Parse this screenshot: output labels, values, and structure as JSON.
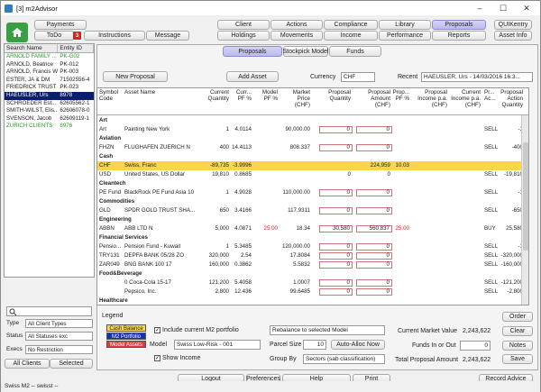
{
  "window": {
    "title": "[3] m2Advisor",
    "minimize": "–",
    "maximize": "☐",
    "close": "✕"
  },
  "nav_row1": {
    "payments": "Payments",
    "client": "Client",
    "actions": "Actions",
    "compliance": "Compliance",
    "library": "Library",
    "proposals": "Proposals",
    "quikentry": "QUIKentry"
  },
  "nav_row2": {
    "todo": "ToDo",
    "todo_count": "3",
    "instructions": "Instructions",
    "message": "Message",
    "holdings": "Holdings",
    "movements": "Movements",
    "income": "Income",
    "performance": "Performance",
    "reports": "Reports",
    "asset_info": "Asset Info"
  },
  "subtabs": {
    "proposals": "Proposals",
    "stockpick": "Stockpick Model",
    "funds": "Funds"
  },
  "client_list": {
    "headers": [
      "Search Name",
      "Entity ID"
    ],
    "rows": [
      {
        "name": "ARNOLD FAMILY ...",
        "id": "PK-G02",
        "color": "#2a9a2a"
      },
      {
        "name": "ARNOLD, Beatrice",
        "id": "PK-012",
        "color": "#222"
      },
      {
        "name": "ARNOLD, Francis W",
        "id": "PK-003",
        "color": "#222"
      },
      {
        "name": "ESTER, JA & DM",
        "id": "71502556-4",
        "color": "#222"
      },
      {
        "name": "FRIEDRICK TRUST",
        "id": "PK-023",
        "color": "#222"
      },
      {
        "name": "HAEUSLER, Urs",
        "id": "8978",
        "color": "#fff",
        "selected": true
      },
      {
        "name": "SCHROEDER Est...",
        "id": "62605562-1",
        "color": "#222"
      },
      {
        "name": "SMITH-WILST, Elis...",
        "id": "62606078-0",
        "color": "#222"
      },
      {
        "name": "SVENSON, Jacob",
        "id": "62609119-1",
        "color": "#222"
      },
      {
        "name": "ZURICH CLIENTS",
        "id": "8976",
        "color": "#2a9a2a"
      }
    ]
  },
  "filters": {
    "type_label": "Type",
    "type_value": "All Client Types",
    "status_label": "Status",
    "status_value": "All Statuses exc",
    "execs_label": "Execs",
    "execs_value": "No Restriction",
    "all_clients": "All Clients",
    "selected": "Selected"
  },
  "toolbar": {
    "new_proposal": "New Proposal",
    "add_asset": "Add Asset",
    "currency_label": "Currency",
    "currency_value": "CHF",
    "recent_label": "Recent",
    "recent_value": "HAEUSLER, Urs - 14/03/2016 16:3..."
  },
  "grid_headers": [
    {
      "k": "sym",
      "t": "Symbol\nCode"
    },
    {
      "k": "name",
      "t": "Asset Name"
    },
    {
      "k": "qty",
      "t": "Current\nQuantity"
    },
    {
      "k": "cpf",
      "t": "Curr...\nPF %"
    },
    {
      "k": "mpf",
      "t": "Model\nPF %"
    },
    {
      "k": "mp",
      "t": "Market\nPrice\n(CHF)"
    },
    {
      "k": "pq",
      "t": "Proposal\nQuantity"
    },
    {
      "k": "pa",
      "t": "Proposal\nAmount\n(CHF)"
    },
    {
      "k": "ppf",
      "t": "Prop...\nPF %"
    },
    {
      "k": "pi",
      "t": "Proposal\nIncome p.a.\n(CHF)"
    },
    {
      "k": "ci",
      "t": "Current\nIncome p.a.\n(CHF)"
    },
    {
      "k": "pr",
      "t": "Pr...\nAc..."
    },
    {
      "k": "pact",
      "t": "Proposal\nAction\nQuantity"
    }
  ],
  "grid_rows": [
    {
      "type": "sec",
      "sym": "Art"
    },
    {
      "sym": "Art",
      "name": "Painting New York",
      "qty": "1",
      "cpf": "4.0114",
      "mpf": "",
      "mp": "90,000.00",
      "pq": "0",
      "pa": "0",
      "ppf": "",
      "pi": "",
      "ci": "",
      "pr": "SELL",
      "pact": "-1",
      "box": true
    },
    {
      "type": "sec",
      "sym": "Aviation"
    },
    {
      "sym": "FHZN",
      "name": "FLUGHAFEN ZUERICH N",
      "qty": "400",
      "cpf": "14.4113",
      "mpf": "",
      "mp": "808.337",
      "pq": "0",
      "pa": "0",
      "ppf": "",
      "pi": "",
      "ci": "",
      "pr": "SELL",
      "pact": "-400",
      "box": true
    },
    {
      "type": "sec",
      "sym": "Cash"
    },
    {
      "sym": "CHF",
      "name": "Swiss, Franc",
      "qty": "-89,735",
      "cpf": "-3.9996",
      "mpf": "",
      "mp": "",
      "pq": "",
      "pa": "224,959",
      "ppf": "10.03",
      "pi": "",
      "ci": "",
      "pr": "",
      "pact": "",
      "hl": true
    },
    {
      "sym": "USD",
      "name": "United States, US Dollar",
      "qty": "19,810",
      "cpf": "0.8685",
      "mpf": "",
      "mp": "",
      "pq": "0",
      "pa": "0",
      "ppf": "",
      "pi": "",
      "ci": "",
      "pr": "SELL",
      "pact": "-19,810"
    },
    {
      "type": "sec",
      "sym": "Cleantech"
    },
    {
      "sym": "PE Fund",
      "name": "BlackRock PE Fund Asia 10",
      "qty": "1",
      "cpf": "4.9028",
      "mpf": "",
      "mp": "110,000.00",
      "pq": "0",
      "pa": "0",
      "ppf": "",
      "pi": "",
      "ci": "",
      "pr": "SELL",
      "pact": "-1",
      "box": true
    },
    {
      "type": "sec",
      "sym": "Commodities"
    },
    {
      "sym": "GLD",
      "name": "SPDR GOLD TRUST SHA...",
      "qty": "650",
      "cpf": "3.4166",
      "mpf": "",
      "mp": "117.9311",
      "pq": "0",
      "pa": "0",
      "ppf": "",
      "pi": "",
      "ci": "",
      "pr": "SELL",
      "pact": "-650",
      "box": true
    },
    {
      "type": "sec",
      "sym": "Engineering"
    },
    {
      "sym": "ABBN",
      "name": "ABB LTD N",
      "qty": "5,000",
      "cpf": "4.0871",
      "mpf": "25.00",
      "mp": "18.34",
      "pq": "30,580",
      "pa": "560,837",
      "ppf": "25.00",
      "pi": "",
      "ci": "",
      "pr": "BUY",
      "pact": "25,580",
      "box": true
    },
    {
      "type": "sec",
      "sym": "Financial Services"
    },
    {
      "sym": "Pensio...",
      "name": "Pension Fund - Kuwait",
      "qty": "1",
      "cpf": "5.3485",
      "mpf": "",
      "mp": "120,000.00",
      "pq": "0",
      "pa": "0",
      "ppf": "",
      "pi": "",
      "ci": "",
      "pr": "SELL",
      "pact": "-1",
      "box": true
    },
    {
      "sym": "TRY131",
      "name": "DEPFA BANK 05/28 ZO",
      "qty": "320,000",
      "cpf": "2.54",
      "mpf": "",
      "mp": "17.8084",
      "pq": "0",
      "pa": "0",
      "ppf": "",
      "pi": "",
      "ci": "",
      "pr": "SELL",
      "pact": "-320,000",
      "box": true
    },
    {
      "sym": "ZAR049",
      "name": "BNG BANK     100 17",
      "qty": "160,000",
      "cpf": "0.3862",
      "mpf": "",
      "mp": "5.5832",
      "pq": "0",
      "pa": "0",
      "ppf": "",
      "pi": "",
      "ci": "",
      "pr": "SELL",
      "pact": "-160,000",
      "box": true
    },
    {
      "type": "sec",
      "sym": "Food&Beverage"
    },
    {
      "sym": "",
      "name": "0 Coca-Cola 15-17",
      "qty": "121,200",
      "cpf": "5.4058",
      "mpf": "",
      "mp": "1.0007",
      "pq": "0",
      "pa": "0",
      "ppf": "",
      "pi": "",
      "ci": "",
      "pr": "SELL",
      "pact": "-121,200",
      "box": true
    },
    {
      "sym": "",
      "name": "Pepsico, Inc.",
      "qty": "2,800",
      "cpf": "12.436",
      "mpf": "",
      "mp": "99.6485",
      "pq": "0",
      "pa": "0",
      "ppf": "",
      "pi": "",
      "ci": "",
      "pr": "SELL",
      "pact": "-2,800",
      "box": true
    },
    {
      "type": "sec",
      "sym": "Healthcare"
    },
    {
      "sym": "EWL",
      "name": "iShares MSCI Switzer",
      "qty": "4,000",
      "cpf": "5.1038",
      "mpf": "",
      "mp": "28.6276",
      "pq": "0",
      "pa": "0",
      "ppf": "",
      "pi": "",
      "ci": "",
      "pr": "SELL",
      "pact": "-4,000",
      "box": true
    }
  ],
  "legend": {
    "title": "Legend",
    "cash": "Cash Balance",
    "m2": "M2 Portfolio",
    "model": "Model Assets"
  },
  "options": {
    "include_label": "Include current M2 portfolio",
    "show_income_label": "Show Income",
    "rebalance_value": "Rebalance to selected Model",
    "model_label": "Model",
    "model_value": "Swiss Low-Risk - 001",
    "parcel_label": "Parcel Size",
    "parcel_value": "10",
    "autoalloc": "Auto-Alloc Now",
    "groupby_label": "Group By",
    "groupby_value": "Sectors (sab classification)",
    "cmv_label": "Current Market Value",
    "cmv_value": "2,243,622",
    "funds_label": "Funds In or Out",
    "funds_value": "0",
    "tpa_label": "Total Proposal Amount",
    "tpa_value": "2,243,622",
    "order": "Order",
    "clear": "Clear",
    "notes": "Notes",
    "save": "Save"
  },
  "bottom": {
    "logout": "Logout",
    "preferences": "Preferences",
    "help": "Help",
    "print": "Print",
    "record_advice": "Record Advice"
  },
  "statusbar": {
    "text": "Swiss M2 -- swisst --"
  }
}
